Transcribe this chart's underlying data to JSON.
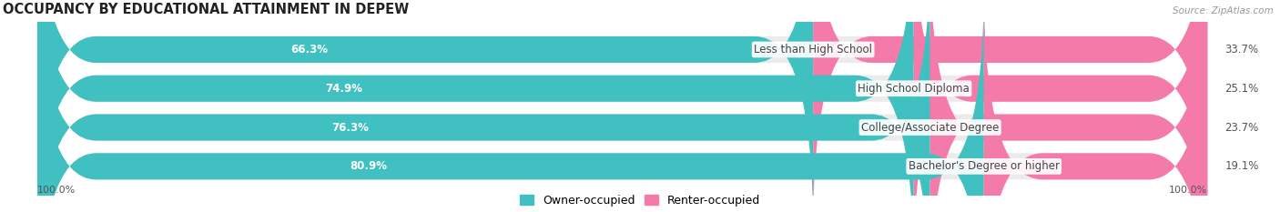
{
  "title": "OCCUPANCY BY EDUCATIONAL ATTAINMENT IN DEPEW",
  "source": "Source: ZipAtlas.com",
  "categories": [
    "Less than High School",
    "High School Diploma",
    "College/Associate Degree",
    "Bachelor's Degree or higher"
  ],
  "owner_values": [
    66.3,
    74.9,
    76.3,
    80.9
  ],
  "renter_values": [
    33.7,
    25.1,
    23.7,
    19.1
  ],
  "owner_color": "#40c0c0",
  "renter_color": "#f47aaa",
  "bar_bg_color": "#ebebeb",
  "bar_height": 0.68,
  "title_fontsize": 10.5,
  "label_fontsize": 8.5,
  "legend_fontsize": 9,
  "axis_label_fontsize": 8,
  "background_color": "#ffffff",
  "tick_label_left": "100.0%",
  "tick_label_right": "100.0%"
}
